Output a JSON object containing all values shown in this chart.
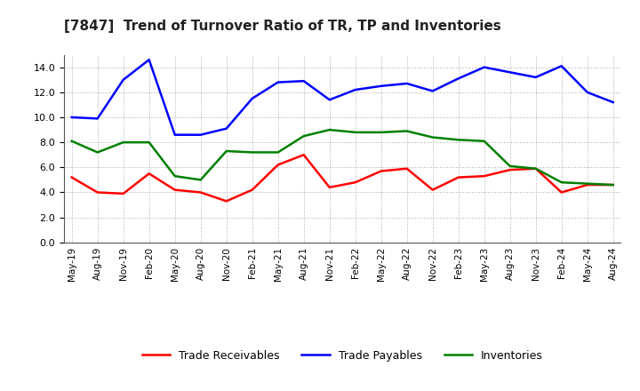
{
  "title": "[7847]  Trend of Turnover Ratio of TR, TP and Inventories",
  "x_labels": [
    "May-19",
    "Aug-19",
    "Nov-19",
    "Feb-20",
    "May-20",
    "Aug-20",
    "Nov-20",
    "Feb-21",
    "May-21",
    "Aug-21",
    "Nov-21",
    "Feb-22",
    "May-22",
    "Aug-22",
    "Nov-22",
    "Feb-23",
    "May-23",
    "Aug-23",
    "Nov-23",
    "Feb-24",
    "May-24",
    "Aug-24"
  ],
  "trade_receivables": [
    5.2,
    4.0,
    3.9,
    5.5,
    4.2,
    4.0,
    3.3,
    4.2,
    6.2,
    7.0,
    4.4,
    4.8,
    5.7,
    5.9,
    4.2,
    5.2,
    5.3,
    5.8,
    5.9,
    4.0,
    4.6,
    4.6
  ],
  "trade_payables": [
    10.0,
    9.9,
    13.0,
    14.6,
    8.6,
    8.6,
    9.1,
    11.5,
    12.8,
    12.9,
    11.4,
    12.2,
    12.5,
    12.7,
    12.1,
    13.1,
    14.0,
    13.6,
    13.2,
    14.1,
    12.0,
    11.2
  ],
  "inventories": [
    8.1,
    7.2,
    8.0,
    8.0,
    5.3,
    5.0,
    7.3,
    7.2,
    7.2,
    8.5,
    9.0,
    8.8,
    8.8,
    8.9,
    8.4,
    8.2,
    8.1,
    6.1,
    5.9,
    4.8,
    4.7,
    4.6
  ],
  "ylim": [
    0,
    15.0
  ],
  "yticks": [
    0.0,
    2.0,
    4.0,
    6.0,
    8.0,
    10.0,
    12.0,
    14.0
  ],
  "color_tr": "#ff0000",
  "color_tp": "#0000ff",
  "color_inv": "#008000",
  "legend_tr": "Trade Receivables",
  "legend_tp": "Trade Payables",
  "legend_inv": "Inventories",
  "bg_color": "#ffffff",
  "plot_bg_color": "#ffffff",
  "grid_color": "#aaaaaa",
  "linewidth": 1.8
}
